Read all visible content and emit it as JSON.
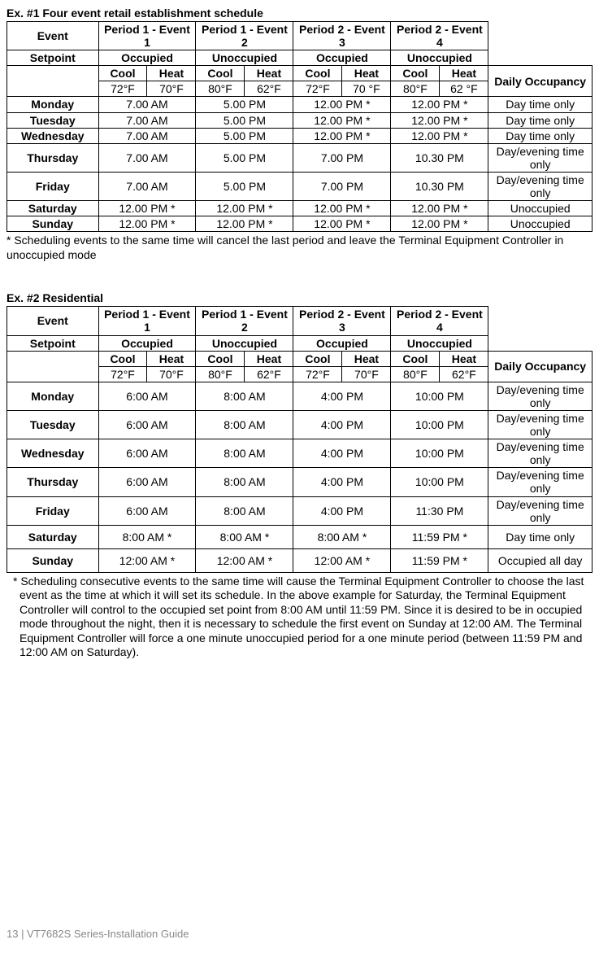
{
  "ex1": {
    "title": "Ex. #1 Four event retail establishment schedule",
    "headers": {
      "event": "Event",
      "p1e1": "Period 1 - Event 1",
      "p1e2": "Period 1 - Event 2",
      "p2e3": "Period 2 - Event 3",
      "p2e4": "Period 2 - Event 4",
      "setpoint": "Setpoint",
      "occ": "Occupied",
      "unocc": "Unoccupied",
      "cool": "Cool",
      "heat": "Heat",
      "daily": "Daily Occupancy"
    },
    "temps": {
      "c1": "72°F",
      "h1": "70°F",
      "c2": "80°F",
      "h2": "62°F",
      "c3": "72°F",
      "h3": "70 °F",
      "c4": "80°F",
      "h4": "62 °F"
    },
    "rows": [
      {
        "day": "Monday",
        "e1": "7.00 AM",
        "e2": "5.00 PM",
        "e3": "12.00 PM *",
        "e4": "12.00 PM *",
        "occ": "Day time only"
      },
      {
        "day": "Tuesday",
        "e1": "7.00 AM",
        "e2": "5.00 PM",
        "e3": "12.00 PM *",
        "e4": "12.00 PM *",
        "occ": "Day time only"
      },
      {
        "day": "Wednesday",
        "e1": "7.00 AM",
        "e2": "5.00 PM",
        "e3": "12.00 PM *",
        "e4": "12.00 PM *",
        "occ": "Day time only"
      },
      {
        "day": "Thursday",
        "e1": "7.00 AM",
        "e2": "5.00 PM",
        "e3": "7.00 PM",
        "e4": "10.30 PM",
        "occ": "Day/evening time only"
      },
      {
        "day": "Friday",
        "e1": "7.00 AM",
        "e2": "5.00 PM",
        "e3": "7.00 PM",
        "e4": "10.30 PM",
        "occ": "Day/evening time only"
      },
      {
        "day": "Saturday",
        "e1": "12.00 PM *",
        "e2": "12.00 PM *",
        "e3": "12.00 PM *",
        "e4": "12.00 PM *",
        "occ": "Unoccupied"
      },
      {
        "day": "Sunday",
        "e1": "12.00 PM *",
        "e2": "12.00 PM *",
        "e3": "12.00 PM *",
        "e4": "12.00 PM *",
        "occ": "Unoccupied"
      }
    ],
    "note": "* Scheduling events to the same time will cancel the last period and leave the Terminal Equipment Controller in unoccupied mode"
  },
  "ex2": {
    "title": "Ex. #2 Residential",
    "headers": {
      "event": "Event",
      "p1e1": "Period 1 - Event 1",
      "p1e2": "Period 1 - Event 2",
      "p2e3": "Period 2 - Event 3",
      "p2e4": "Period 2 - Event 4",
      "setpoint": "Setpoint",
      "occ": "Occupied",
      "unocc": "Unoccupied",
      "cool": "Cool",
      "heat": "Heat",
      "daily": "Daily Occupancy"
    },
    "temps": {
      "c1": "72°F",
      "h1": "70°F",
      "c2": "80°F",
      "h2": "62°F",
      "c3": "72°F",
      "h3": "70°F",
      "c4": "80°F",
      "h4": "62°F"
    },
    "rows": [
      {
        "day": "Monday",
        "e1": "6:00 AM",
        "e2": "8:00 AM",
        "e3": "4:00 PM",
        "e4": "10:00 PM",
        "occ": "Day/evening time only"
      },
      {
        "day": "Tuesday",
        "e1": "6:00 AM",
        "e2": "8:00 AM",
        "e3": "4:00 PM",
        "e4": "10:00 PM",
        "occ": "Day/evening time only"
      },
      {
        "day": "Wednesday",
        "e1": "6:00 AM",
        "e2": "8:00 AM",
        "e3": "4:00 PM",
        "e4": "10:00 PM",
        "occ": "Day/evening time only"
      },
      {
        "day": "Thursday",
        "e1": "6:00 AM",
        "e2": "8:00 AM",
        "e3": "4:00 PM",
        "e4": "10:00 PM",
        "occ": "Day/evening time only"
      },
      {
        "day": "Friday",
        "e1": "6:00 AM",
        "e2": "8:00 AM",
        "e3": "4:00 PM",
        "e4": "11:30 PM",
        "occ": "Day/evening time only"
      },
      {
        "day": "Saturday",
        "e1": "8:00 AM *",
        "e2": "8:00 AM *",
        "e3": "8:00 AM *",
        "e4": "11:59 PM *",
        "occ": "Day time only"
      },
      {
        "day": "Sunday",
        "e1": "12:00 AM *",
        "e2": "12:00 AM *",
        "e3": "12:00 AM *",
        "e4": "11:59 PM *",
        "occ": "Occupied all day"
      }
    ],
    "note": "* Scheduling consecutive events to the same time will cause the Terminal Equipment Controller to choose the last event as the time at which it will set its schedule.  In the above example for Saturday, the Terminal Equipment Controller will control to the occupied set point from 8:00 AM until 11:59 PM.  Since it is desired to be in occupied mode throughout the night, then it is necessary to schedule the first event on Sunday at 12:00 AM.  The Terminal Equipment Controller will force a one minute unoccupied period for a one minute period (between 11:59 PM and 12:00 AM on Saturday)."
  },
  "footer": "13 | VT7682S Series-Installation Guide"
}
